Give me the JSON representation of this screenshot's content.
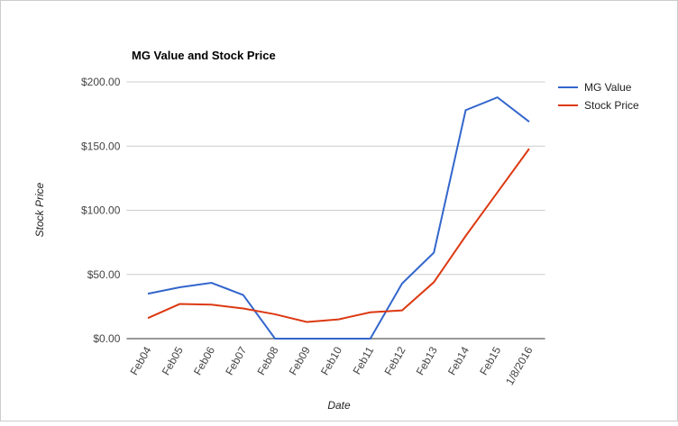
{
  "chart_data": {
    "type": "line",
    "title": "MG Value and Stock Price",
    "x_label": "Date",
    "y_label": "Stock Price",
    "categories": [
      "Feb04",
      "Feb05",
      "Feb06",
      "Feb07",
      "Feb08",
      "Feb09",
      "Feb10",
      "Feb11",
      "Feb12",
      "Feb13",
      "Feb14",
      "Feb15",
      "1/8/2016"
    ],
    "series": [
      {
        "name": "MG Value",
        "color": "#3366cc",
        "values": [
          35,
          40,
          43.5,
          34,
          0,
          0,
          0,
          0,
          43,
          67,
          178,
          188,
          169
        ]
      },
      {
        "name": "Stock Price",
        "color": "#dc3912",
        "values": [
          16,
          27,
          26.5,
          23.5,
          19,
          13,
          15,
          20.5,
          22,
          44,
          80,
          114,
          148
        ]
      }
    ],
    "ylim": [
      0,
      200
    ],
    "yticks": [
      {
        "value": 0,
        "label": "$0.00"
      },
      {
        "value": 50,
        "label": "$50.00"
      },
      {
        "value": 100,
        "label": "$100.00"
      },
      {
        "value": 150,
        "label": "$150.00"
      },
      {
        "value": 200,
        "label": "$200.00"
      }
    ],
    "grid": true,
    "legend": "right"
  }
}
